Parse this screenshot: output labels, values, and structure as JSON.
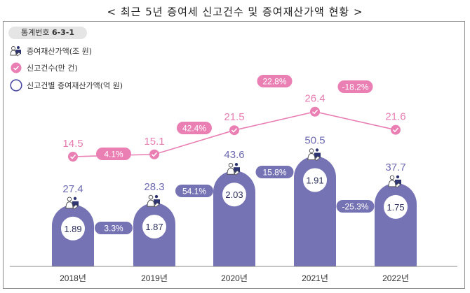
{
  "title": "< 최근 5년 증여세 신고건수 및 증여재산가액 현황 >",
  "stat_badge": {
    "label": "통계번호",
    "number": "6-3-1"
  },
  "legend": [
    {
      "icon": "people-handshake-icon",
      "label": "증여재산가액(조 원)"
    },
    {
      "icon": "pink-check-circle-icon",
      "label": "신고건수(만 건)"
    },
    {
      "icon": "purple-ring-icon",
      "label": "신고건별 증여재산가액(억 원)"
    }
  ],
  "colors": {
    "bar": "#7673b4",
    "line": "#e97fb3",
    "text_blue": "#6c69b0",
    "text_pink": "#e77db1",
    "axis": "#888888"
  },
  "chart_data": {
    "type": "bar+line",
    "title": "< 최근 5년 증여세 신고건수 및 증여재산가액 현황 >",
    "categories": [
      "2018년",
      "2019년",
      "2020년",
      "2021년",
      "2022년"
    ],
    "series": [
      {
        "name": "증여재산가액(조 원)",
        "type": "bar",
        "values": [
          27.4,
          28.3,
          43.6,
          50.5,
          37.7
        ],
        "growth_labels": [
          "3.3%",
          "54.1%",
          "15.8%",
          "-25.3%"
        ]
      },
      {
        "name": "신고건수(만 건)",
        "type": "line",
        "values": [
          14.5,
          15.1,
          21.5,
          26.4,
          21.6
        ],
        "growth_labels": [
          "4.1%",
          "42.4%",
          "22.8%",
          "-18.2%"
        ]
      },
      {
        "name": "신고건별 증여재산가액(억 원)",
        "type": "circle-label",
        "values": [
          1.89,
          1.87,
          2.03,
          1.91,
          1.75
        ]
      }
    ],
    "value_labels_bar": [
      "27.4",
      "28.3",
      "43.6",
      "50.5",
      "37.7"
    ],
    "value_labels_line": [
      "14.5",
      "15.1",
      "21.5",
      "26.4",
      "21.6"
    ],
    "value_labels_per_case": [
      "1.89",
      "1.87",
      "2.03",
      "1.91",
      "1.75"
    ],
    "xlabel": "",
    "ylabel": "",
    "grid": false,
    "legend_position": "top-left"
  }
}
